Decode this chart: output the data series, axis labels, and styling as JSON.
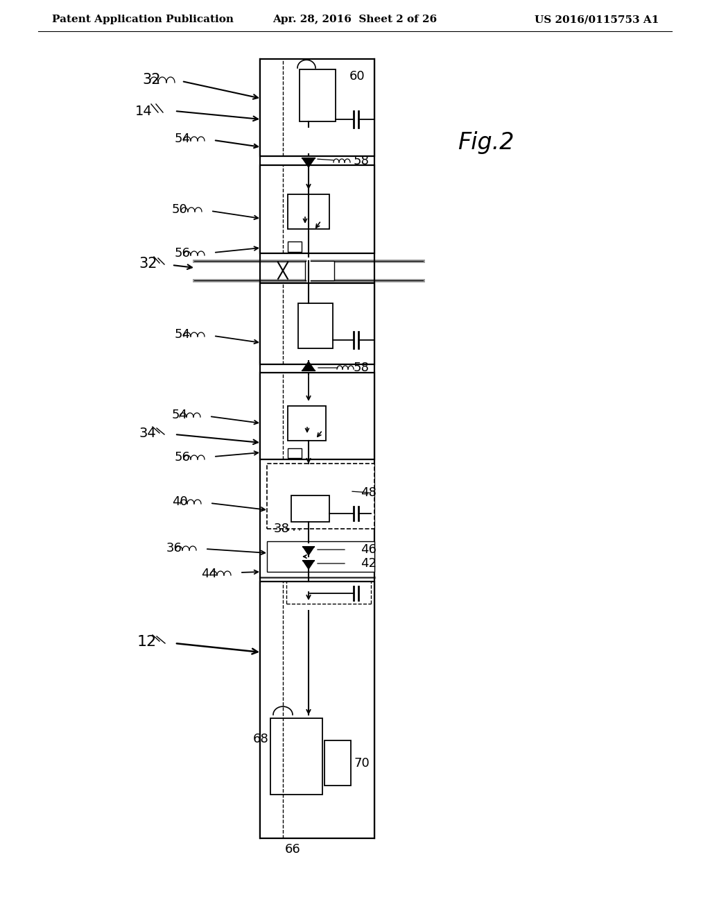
{
  "title_left": "Patent Application Publication",
  "title_center": "Apr. 28, 2016  Sheet 2 of 26",
  "title_right": "US 2016/0115753 A1",
  "fig_label": "Fig.2",
  "background_color": "#ffffff",
  "line_color": "#000000",
  "gray_color": "#999999",
  "header_fontsize": 11,
  "fig_label_fontsize": 24,
  "label_fontsize": 13
}
